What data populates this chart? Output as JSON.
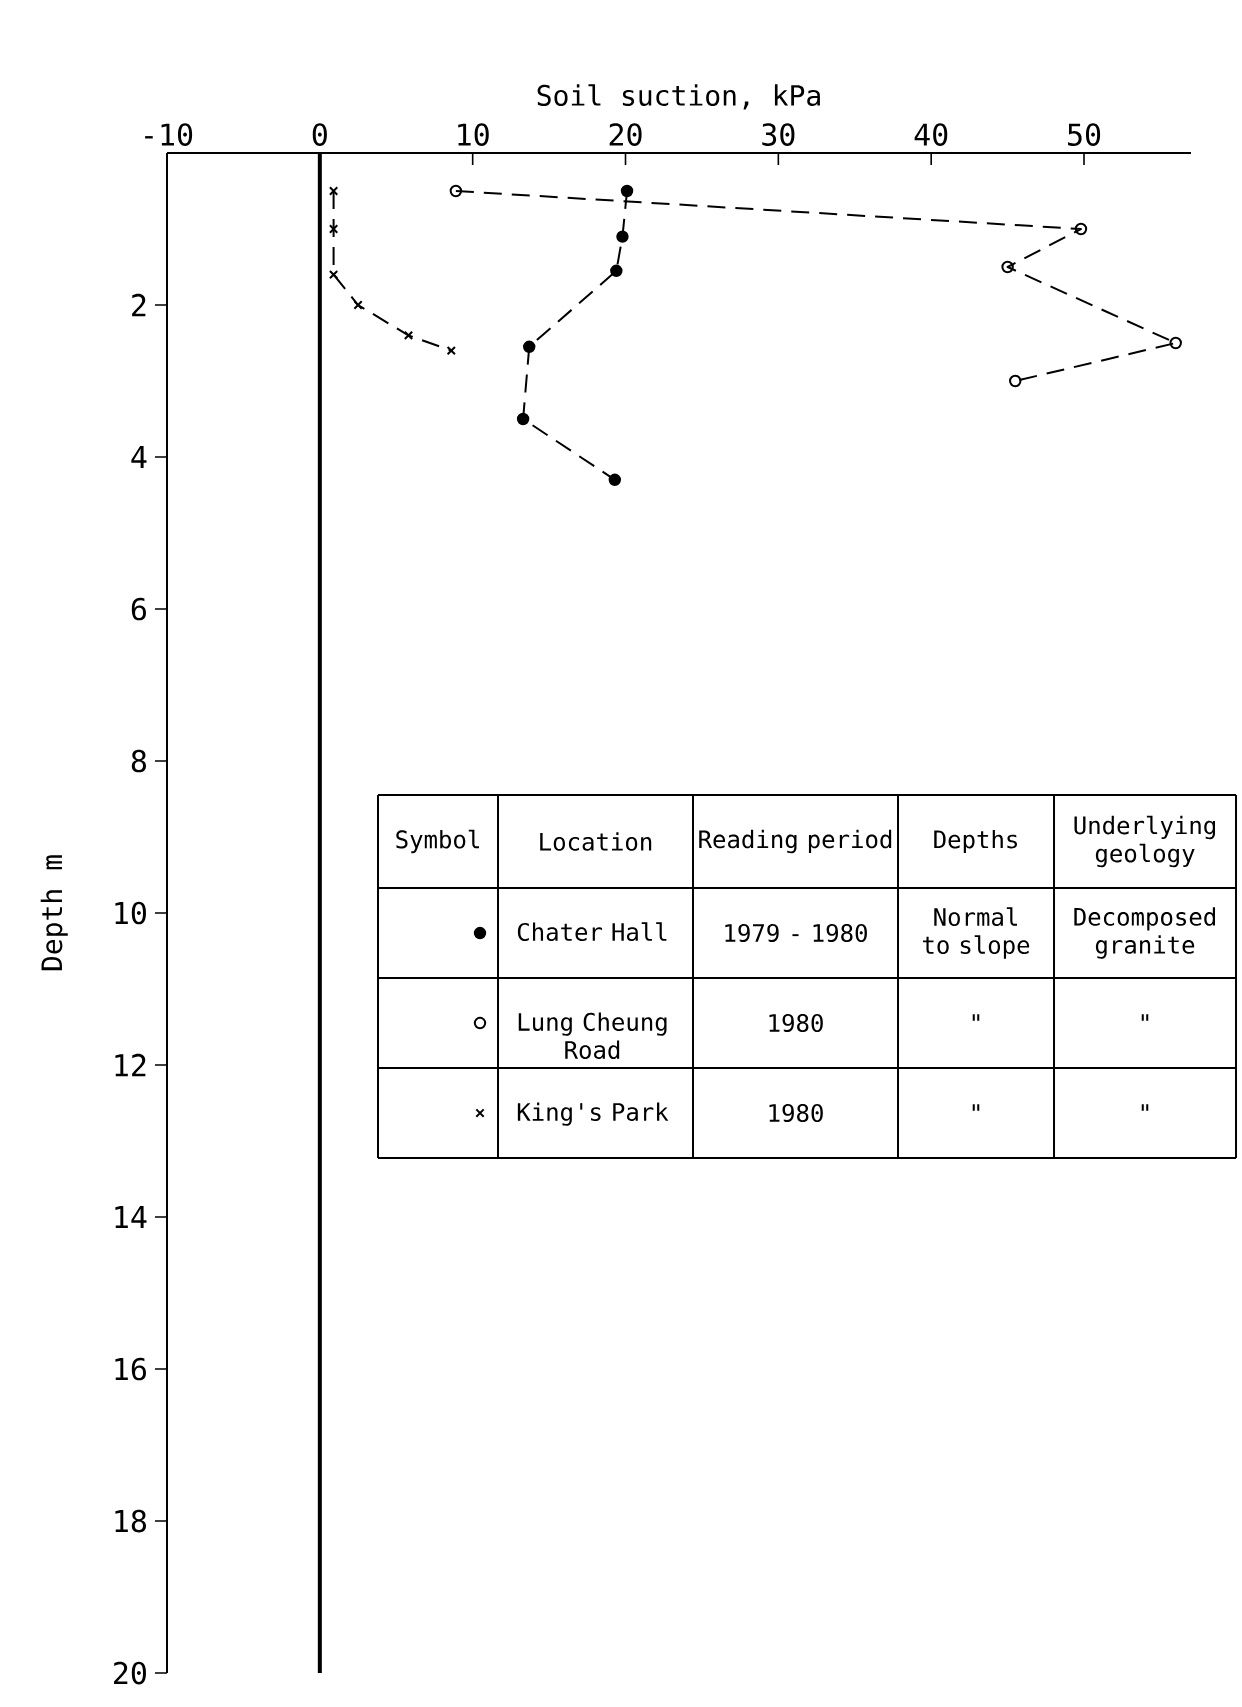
{
  "chart_data": {
    "type": "line",
    "xlabel": "Soil suction, kPa",
    "ylabel": "Depth m",
    "xlim": [
      -10,
      57
    ],
    "xticks": [
      -10,
      0,
      10,
      20,
      30,
      40,
      50
    ],
    "ylim": [
      20,
      0
    ],
    "yticks": [
      2,
      4,
      6,
      8,
      10,
      12,
      14,
      16,
      18,
      20
    ],
    "line_style": "dashed",
    "legend": "bottom left",
    "series": [
      {
        "name": "Chater Hall",
        "color": "#000000",
        "marker": "circle",
        "x": [
          20.1,
          19.8,
          19.4,
          13.7,
          13.3,
          19.3
        ],
        "values": [
          0.5,
          1.1,
          1.55,
          2.55,
          3.5,
          4.3
        ]
      },
      {
        "name": "Lung Cheung Road",
        "color": "#000000",
        "marker": "open circle",
        "x": [
          8.9,
          49.8,
          45.0,
          56.0,
          45.5
        ],
        "values": [
          0.5,
          1.0,
          1.5,
          2.5,
          3.0
        ]
      },
      {
        "name": "King's Park",
        "color": "#000000",
        "marker": "cross",
        "x": [
          0.9,
          0.9,
          0.9,
          2.5,
          5.8,
          8.6
        ],
        "values": [
          0.5,
          1.0,
          1.6,
          2.0,
          2.4,
          2.6
        ]
      }
    ],
    "ref_lines": [
      {
        "axis": "x",
        "value": 0,
        "color": "#000000"
      }
    ],
    "annotations": [
      "Symbol",
      "Location",
      "Reading period",
      "Depths",
      "Underlying geology",
      "1979 - 1980",
      "Normal to slope",
      "Decomposed granite",
      "1980",
      "\"",
      "\"",
      "1980",
      "\"",
      "\""
    ]
  }
}
